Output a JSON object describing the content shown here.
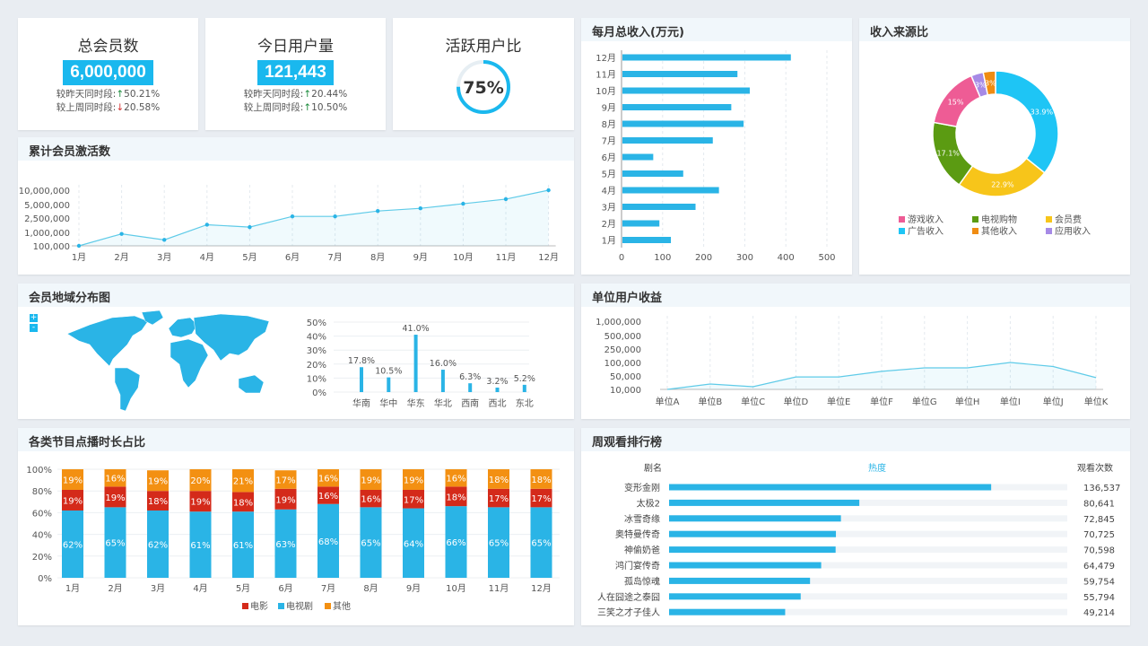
{
  "colors": {
    "accent": "#1ab8ee",
    "up": "#1a8a3a",
    "down": "#d43030",
    "tv": "#2ab4e6",
    "movie": "#d42a1a",
    "other": "#f39012"
  },
  "kpi": [
    {
      "title": "总会员数",
      "value": "6,000,000",
      "cmp1_label": "较昨天同时段:",
      "cmp1_arrow": "↑",
      "cmp1_value": "50.21%",
      "cmp2_label": "较上周同时段:",
      "cmp2_arrow": "↓",
      "cmp2_value": "20.58%"
    },
    {
      "title": "今日用户量",
      "value": "121,443",
      "cmp1_label": "较昨天同时段:",
      "cmp1_arrow": "↑",
      "cmp1_value": "20.44%",
      "cmp2_label": "较上周同时段:",
      "cmp2_arrow": "↑",
      "cmp2_value": "10.50%"
    }
  ],
  "active": {
    "title": "活跃用户比",
    "value": "75%",
    "fraction": 0.75
  },
  "panels": {
    "monthly": "每月总收入(万元)",
    "source": "收入来源比",
    "activation": "累计会员激活数",
    "region": "会员地域分布图",
    "unit": "单位用户收益",
    "genre": "各类节目点播时长占比",
    "ranking": "周观看排行榜"
  },
  "map_controls": {
    "zoom_in": "+",
    "zoom_out": "-"
  },
  "chart_data": [
    {
      "id": "monthly",
      "type": "bar",
      "orientation": "horizontal",
      "categories": [
        "1月",
        "2月",
        "3月",
        "4月",
        "5月",
        "6月",
        "7月",
        "8月",
        "9月",
        "10月",
        "11月",
        "12月"
      ],
      "values": [
        118,
        90,
        178,
        235,
        148,
        75,
        220,
        295,
        265,
        310,
        280,
        410
      ],
      "xlim": [
        0,
        500
      ],
      "xticks": [
        "0",
        "100",
        "200",
        "300",
        "400",
        "500"
      ],
      "grid": true
    },
    {
      "id": "source",
      "type": "pie",
      "donut": true,
      "slices": [
        {
          "name": "广告收入",
          "value": 33.9,
          "label": "33.9%",
          "color": "#1ec5f5"
        },
        {
          "name": "会员费",
          "value": 22.9,
          "label": "22.9%",
          "color": "#f7c51a"
        },
        {
          "name": "电视购物",
          "value": 17.1,
          "label": "17.1%",
          "color": "#5b9b12"
        },
        {
          "name": "游戏收入",
          "value": 15,
          "label": "15%",
          "color": "#ee5c95"
        },
        {
          "name": "应用收入",
          "value": 3,
          "label": "3%",
          "color": "#a68ae6"
        },
        {
          "name": "其他收入",
          "value": 3,
          "label": "3%",
          "color": "#f08c12"
        }
      ],
      "legend_order": [
        "游戏收入",
        "电视购物",
        "会员费",
        "广告收入",
        "其他收入",
        "应用收入"
      ],
      "legend": "bottom"
    },
    {
      "id": "activation",
      "type": "line",
      "area": true,
      "categories": [
        "1月",
        "2月",
        "3月",
        "4月",
        "5月",
        "6月",
        "7月",
        "8月",
        "9月",
        "10月",
        "11月",
        "12月"
      ],
      "values": [
        100000,
        900000,
        500000,
        1800000,
        1550000,
        2800000,
        2800000,
        3800000,
        4300000,
        5300000,
        6900000,
        10000000
      ],
      "yticks": [
        100000,
        1000000,
        2500000,
        5000000,
        10000000
      ],
      "ytick_labels": [
        "100,000",
        "1,000,000",
        "2,500,000",
        "5,000,000",
        "10,000,000"
      ]
    },
    {
      "id": "region",
      "type": "bar",
      "categories": [
        "华南",
        "华中",
        "华东",
        "华北",
        "西南",
        "西北",
        "东北"
      ],
      "values": [
        17.8,
        10.5,
        41.0,
        16.0,
        6.3,
        3.2,
        5.2
      ],
      "labels": [
        "17.8%",
        "10.5%",
        "41.0%",
        "16.0%",
        "6.3%",
        "3.2%",
        "5.2%"
      ],
      "ylim": [
        0,
        50
      ],
      "ytick_labels": [
        "0%",
        "10%",
        "20%",
        "30%",
        "40%",
        "50%"
      ]
    },
    {
      "id": "unit",
      "type": "line",
      "area": true,
      "categories": [
        "单位A",
        "单位B",
        "单位C",
        "单位D",
        "单位E",
        "单位F",
        "单位G",
        "单位H",
        "单位I",
        "单位J",
        "单位K"
      ],
      "values": [
        10000,
        26000,
        18000,
        47000,
        47000,
        67000,
        80000,
        80000,
        100000,
        85000,
        45000
      ],
      "yticks": [
        10000,
        50000,
        100000,
        250000,
        500000,
        1000000
      ],
      "ytick_labels": [
        "10,000",
        "50,000",
        "100,000",
        "250,000",
        "500,000",
        "1,000,000"
      ]
    },
    {
      "id": "genre",
      "type": "bar",
      "stacked": true,
      "categories": [
        "1月",
        "2月",
        "3月",
        "4月",
        "5月",
        "6月",
        "7月",
        "8月",
        "9月",
        "10月",
        "11月",
        "12月"
      ],
      "series": [
        {
          "name": "电视剧",
          "values": [
            62,
            65,
            62,
            61,
            61,
            63,
            68,
            65,
            64,
            66,
            65,
            65
          ]
        },
        {
          "name": "电影",
          "values": [
            19,
            19,
            18,
            19,
            18,
            19,
            16,
            16,
            17,
            18,
            17,
            17
          ]
        },
        {
          "name": "其他",
          "values": [
            19,
            16,
            19,
            20,
            21,
            17,
            16,
            19,
            19,
            16,
            18,
            18
          ]
        }
      ],
      "legend_order": [
        "电影",
        "电视剧",
        "其他"
      ],
      "ylim": [
        0,
        100
      ],
      "ytick_labels": [
        "0%",
        "20%",
        "40%",
        "60%",
        "80%",
        "100%"
      ],
      "legend": "bottom"
    }
  ],
  "ranking": {
    "headers": [
      "剧名",
      "热度",
      "观看次数"
    ],
    "rows": [
      {
        "name": "变形金刚",
        "count": "136,537",
        "value": 136537
      },
      {
        "name": "太极2",
        "count": "80,641",
        "value": 80641
      },
      {
        "name": "冰雪奇缘",
        "count": "72,845",
        "value": 72845
      },
      {
        "name": "奥特曼传奇",
        "count": "70,725",
        "value": 70725
      },
      {
        "name": "神偷奶爸",
        "count": "70,598",
        "value": 70598
      },
      {
        "name": "鸿门宴传奇",
        "count": "64,479",
        "value": 64479
      },
      {
        "name": "孤岛惊魂",
        "count": "59,754",
        "value": 59754
      },
      {
        "name": "人在囧途之泰囧",
        "count": "55,794",
        "value": 55794
      },
      {
        "name": "三笑之才子佳人",
        "count": "49,214",
        "value": 49214
      }
    ]
  }
}
